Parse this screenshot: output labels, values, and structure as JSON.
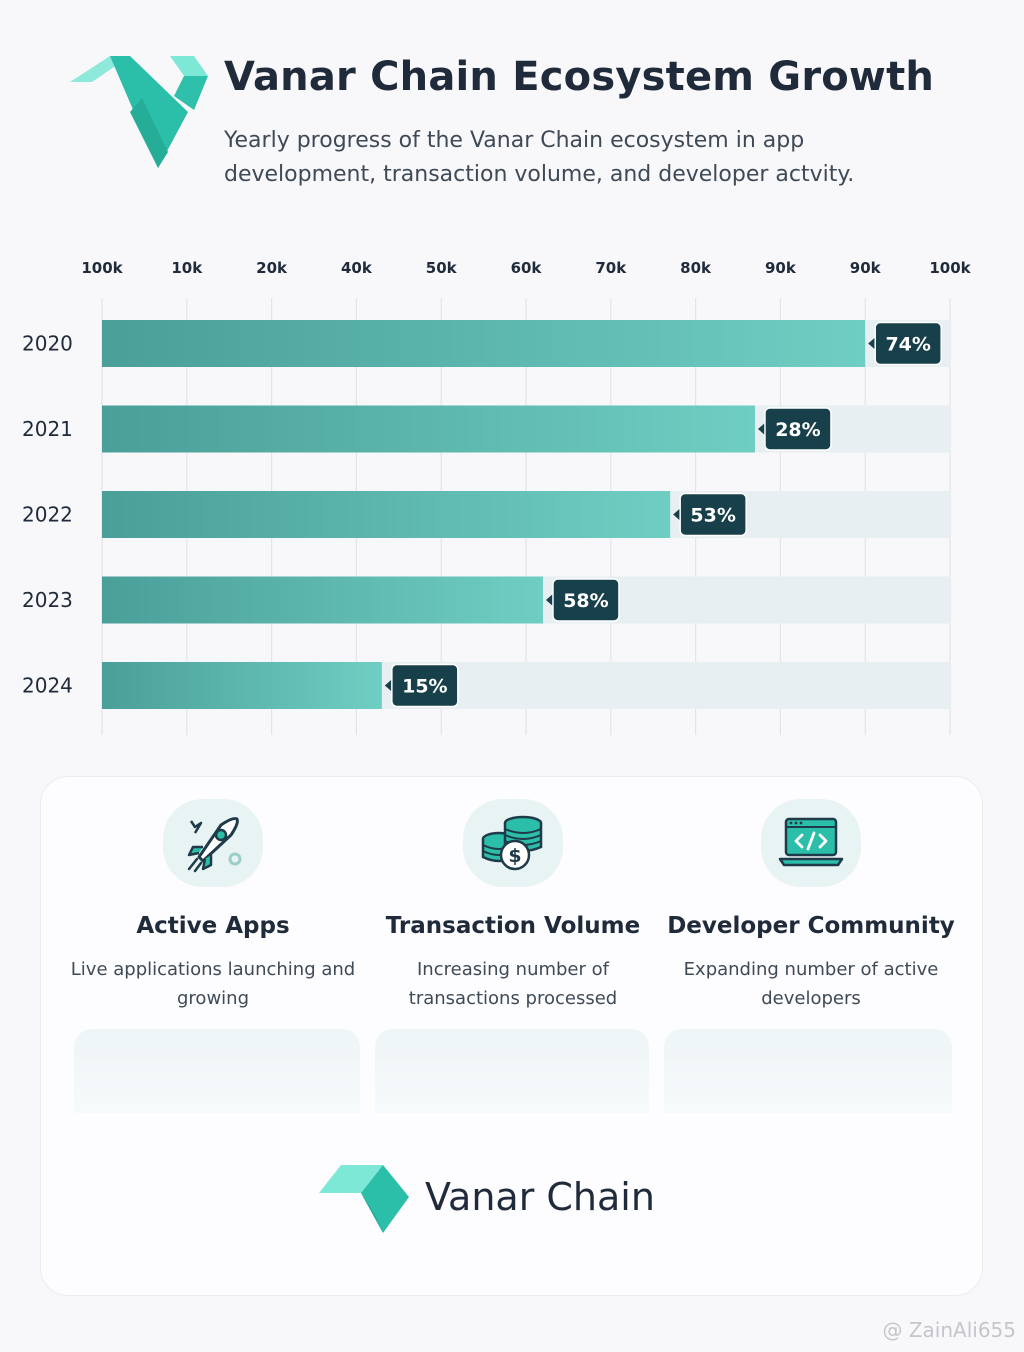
{
  "header": {
    "title": "Vanar Chain Ecosystem Growth",
    "subtitle": "Yearly progress of the Vanar Chain ecosystem in app development, transaction volume, and developer actvity."
  },
  "colors": {
    "bar_dark": "#4fa7a0",
    "bar_light": "#6ccbc0",
    "track": "#e8eff2",
    "badge": "#17404a",
    "logo_light": "#7ee8d6",
    "logo_dark": "#2bbfaa"
  },
  "chart_data": {
    "type": "bar",
    "orientation": "horizontal",
    "x_tick_labels": [
      "100k",
      "10k",
      "20k",
      "40k",
      "50k",
      "60k",
      "70k",
      "80k",
      "90k",
      "90k",
      "100k"
    ],
    "categories": [
      "2020",
      "2021",
      "2022",
      "2023",
      "2024"
    ],
    "values": [
      90,
      77,
      67,
      52,
      33
    ],
    "value_unit": "k",
    "xlim": [
      0,
      100
    ],
    "data_labels": [
      "74%",
      "28%",
      "53%",
      "58%",
      "15%"
    ],
    "grid": true,
    "title": "",
    "xlabel": "",
    "ylabel": ""
  },
  "features": [
    {
      "icon": "rocket-icon",
      "title": "Active Apps",
      "description": "Live applications launching and growing"
    },
    {
      "icon": "coins-icon",
      "title": "Transaction Volume",
      "description": "Increasing number of transactions processed"
    },
    {
      "icon": "code-laptop-icon",
      "title": "Developer Community",
      "description": "Expanding number of active developers"
    }
  ],
  "footer": {
    "brand": "Vanar Chain"
  },
  "watermark": "@ ZainAli655"
}
